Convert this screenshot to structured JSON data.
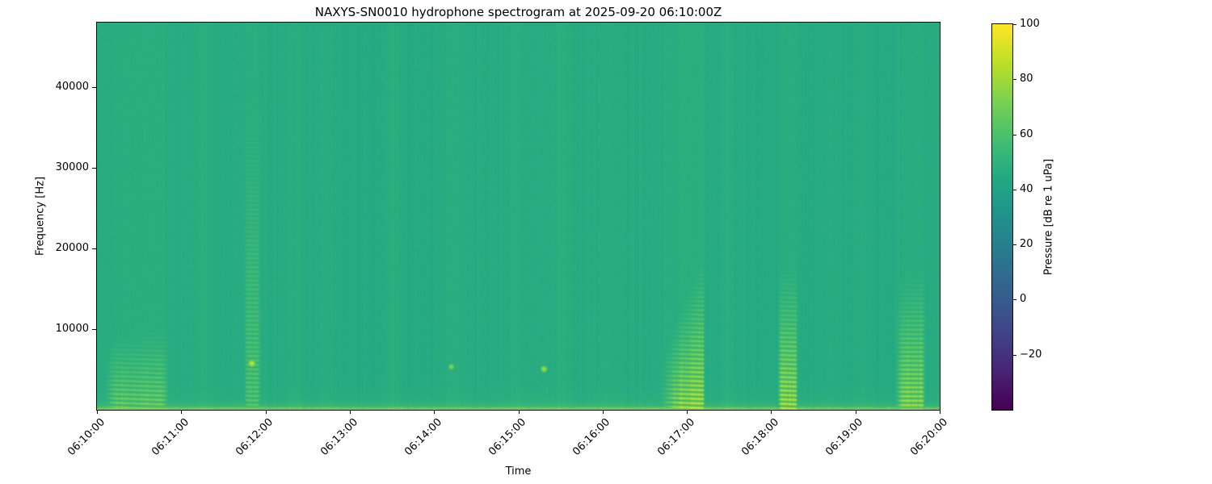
{
  "chart_data": {
    "type": "heatmap",
    "subtype": "spectrogram",
    "title": "NAXYS-SN0010 hydrophone spectrogram at 2025-09-20 06:10:00Z",
    "xlabel": "Time",
    "ylabel": "Frequency [Hz]",
    "x_ticks": [
      "06:10:00",
      "06:11:00",
      "06:12:00",
      "06:13:00",
      "06:14:00",
      "06:15:00",
      "06:16:00",
      "06:17:00",
      "06:18:00",
      "06:19:00",
      "06:20:00"
    ],
    "y_ticks": [
      10000,
      20000,
      30000,
      40000
    ],
    "time_span_s": 600,
    "freq_range_hz": [
      0,
      48000
    ],
    "colorbar": {
      "label": "Pressure [dB re 1 uPa]",
      "ticks": [
        100,
        80,
        60,
        40,
        20,
        0,
        -20
      ],
      "clim": [
        -40,
        100
      ],
      "colormap": "viridis"
    },
    "background_db": 46,
    "low_freq_boost_db": 12,
    "events": [
      {
        "start_s": 3,
        "end_s": 52,
        "rise_s": 12,
        "fall_s": 6,
        "top_hz_start": 9000,
        "top_hz_end": 11000,
        "peak_db": 74,
        "broadband_db": 2.5,
        "shape": 1.0
      },
      {
        "start_s": 104,
        "end_s": 117,
        "rise_s": 3,
        "fall_s": 3,
        "top_hz_start": 46000,
        "top_hz_end": 46000,
        "peak_db": 66,
        "broadband_db": 3,
        "shape": 1.3
      },
      {
        "start_s": 397,
        "end_s": 433,
        "rise_s": 20,
        "fall_s": 2,
        "top_hz_start": 5000,
        "top_hz_end": 21000,
        "peak_db": 89,
        "broadband_db": 4,
        "shape": 1.1
      },
      {
        "start_s": 484,
        "end_s": 499,
        "rise_s": 3,
        "fall_s": 2,
        "top_hz_start": 18000,
        "top_hz_end": 20000,
        "peak_db": 91,
        "broadband_db": 4,
        "shape": 1.2
      },
      {
        "start_s": 567,
        "end_s": 590,
        "rise_s": 7,
        "fall_s": 3,
        "top_hz_start": 16000,
        "top_hz_end": 19000,
        "peak_db": 84,
        "broadband_db": 3,
        "shape": 1.1
      }
    ],
    "faint_columns": [
      {
        "t_s": 75,
        "width_s": 6,
        "db": 1.5
      },
      {
        "t_s": 140,
        "width_s": 8,
        "db": 1.8
      },
      {
        "t_s": 163,
        "width_s": 5,
        "db": 1.5
      },
      {
        "t_s": 210,
        "width_s": 7,
        "db": 1.3
      },
      {
        "t_s": 255,
        "width_s": 8,
        "db": 1.6
      },
      {
        "t_s": 298,
        "width_s": 6,
        "db": 1.4
      },
      {
        "t_s": 330,
        "width_s": 7,
        "db": 1.5
      },
      {
        "t_s": 362,
        "width_s": 6,
        "db": 1.3
      },
      {
        "t_s": 450,
        "width_s": 5,
        "db": 1.5
      },
      {
        "t_s": 520,
        "width_s": 6,
        "db": 1.4
      },
      {
        "t_s": 545,
        "width_s": 5,
        "db": 1.3
      }
    ],
    "specks": [
      {
        "t_s": 110,
        "f_hz": 5800,
        "db": 88
      },
      {
        "t_s": 318,
        "f_hz": 5100,
        "db": 80
      },
      {
        "t_s": 252,
        "f_hz": 5400,
        "db": 74
      }
    ]
  }
}
